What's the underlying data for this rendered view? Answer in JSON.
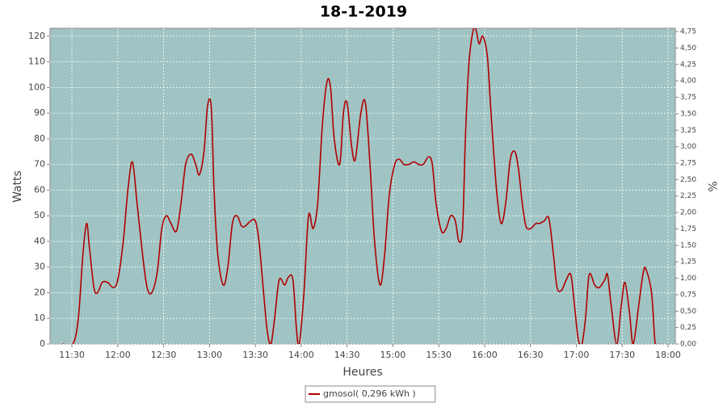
{
  "chart_data": {
    "type": "line",
    "title": "18-1-2019",
    "x_label": "Heures",
    "y_label": "Watts",
    "y2_label": "%",
    "xlim": [
      11.262,
      18.079
    ],
    "xticks": [
      {
        "value": 11.5,
        "label": "11:30"
      },
      {
        "value": 12,
        "label": "12:00"
      },
      {
        "value": 12.5,
        "label": "12:30"
      },
      {
        "value": 13,
        "label": "13:00"
      },
      {
        "value": 13.5,
        "label": "13:30"
      },
      {
        "value": 14,
        "label": "14:00"
      },
      {
        "value": 14.5,
        "label": "14:30"
      },
      {
        "value": 15,
        "label": "15:00"
      },
      {
        "value": 15.5,
        "label": "15:30"
      },
      {
        "value": 16,
        "label": "16:00"
      },
      {
        "value": 16.5,
        "label": "16:30"
      },
      {
        "value": 17,
        "label": "17:00"
      },
      {
        "value": 17.5,
        "label": "17:30"
      },
      {
        "value": 18,
        "label": "18:00"
      }
    ],
    "ylim": [
      0,
      123.1
    ],
    "yticks": [
      0,
      10,
      20,
      30,
      40,
      50,
      60,
      70,
      80,
      90,
      100,
      110,
      120
    ],
    "y2lim": [
      0,
      4.8
    ],
    "y2ticks": [
      {
        "value": 0,
        "label": "0,00"
      },
      {
        "value": 0.25,
        "label": "0,25"
      },
      {
        "value": 0.5,
        "label": "0,50"
      },
      {
        "value": 0.75,
        "label": "0,75"
      },
      {
        "value": 1,
        "label": "1,00"
      },
      {
        "value": 1.25,
        "label": "1,25"
      },
      {
        "value": 1.5,
        "label": "1,50"
      },
      {
        "value": 1.75,
        "label": "1,75"
      },
      {
        "value": 2,
        "label": "2,00"
      },
      {
        "value": 2.25,
        "label": "2,25"
      },
      {
        "value": 2.5,
        "label": "2,50"
      },
      {
        "value": 2.75,
        "label": "2,75"
      },
      {
        "value": 3,
        "label": "3,00"
      },
      {
        "value": 3.25,
        "label": "3,25"
      },
      {
        "value": 3.5,
        "label": "3,50"
      },
      {
        "value": 3.75,
        "label": "3,75"
      },
      {
        "value": 4,
        "label": "4,00"
      },
      {
        "value": 4.25,
        "label": "4,25"
      },
      {
        "value": 4.5,
        "label": "4,50"
      },
      {
        "value": 4.75,
        "label": "4,75"
      }
    ],
    "grid": true,
    "background": "#a0c4c4",
    "legend": "bottom",
    "x": [
      11.4,
      11.51,
      11.57,
      11.62,
      11.66,
      11.69,
      11.74,
      11.78,
      11.83,
      11.89,
      11.95,
      12.0,
      12.06,
      12.11,
      12.16,
      12.21,
      12.27,
      12.32,
      12.37,
      12.43,
      12.48,
      12.53,
      12.58,
      12.64,
      12.69,
      12.74,
      12.8,
      12.85,
      12.89,
      12.94,
      12.98,
      13.02,
      13.05,
      13.09,
      13.15,
      13.2,
      13.25,
      13.3,
      13.35,
      13.39,
      13.45,
      13.5,
      13.54,
      13.59,
      13.63,
      13.67,
      13.71,
      13.76,
      13.82,
      13.86,
      13.91,
      13.95,
      13.98,
      14.03,
      14.08,
      14.13,
      14.18,
      14.23,
      14.28,
      14.32,
      14.36,
      14.42,
      14.46,
      14.5,
      14.55,
      14.59,
      14.65,
      14.7,
      14.75,
      14.8,
      14.86,
      14.91,
      14.96,
      15.02,
      15.07,
      15.12,
      15.17,
      15.23,
      15.28,
      15.33,
      15.39,
      15.43,
      15.47,
      15.53,
      15.58,
      15.63,
      15.68,
      15.72,
      15.76,
      15.79,
      15.83,
      15.88,
      15.91,
      15.94,
      15.98,
      16.03,
      16.07,
      16.13,
      16.18,
      16.23,
      16.28,
      16.33,
      16.37,
      16.41,
      16.45,
      16.5,
      16.56,
      16.6,
      16.65,
      16.7,
      16.75,
      16.79,
      16.84,
      16.89,
      16.94,
      16.98,
      17.02,
      17.06,
      17.1,
      17.14,
      17.2,
      17.25,
      17.31,
      17.34,
      17.38,
      17.44,
      17.49,
      17.53,
      17.58,
      17.62,
      17.68,
      17.73,
      17.76,
      17.82,
      17.86,
      17.9
    ],
    "series": [
      {
        "name": "gmosol( 0,296 kWh )",
        "color": "#b00000",
        "values": [
          0,
          0,
          10,
          35,
          47,
          38,
          22,
          20,
          24,
          24,
          22,
          25,
          40,
          60,
          71,
          55,
          35,
          22,
          20,
          28,
          45,
          50,
          47,
          44,
          55,
          70,
          74,
          70,
          66,
          75,
          93,
          92,
          60,
          35,
          23,
          30,
          47,
          50,
          46,
          46,
          48,
          48,
          40,
          20,
          5,
          0,
          10,
          25,
          23,
          26,
          25,
          5,
          0,
          20,
          50,
          45,
          55,
          85,
          102,
          100,
          80,
          70,
          90,
          94,
          77,
          72,
          90,
          94,
          70,
          40,
          23,
          35,
          58,
          70,
          72,
          70,
          70,
          71,
          70,
          70,
          73,
          70,
          55,
          44,
          45,
          50,
          48,
          40,
          45,
          80,
          110,
          123,
          122,
          117,
          120,
          112,
          90,
          60,
          47,
          55,
          72,
          75,
          68,
          55,
          46,
          45,
          47,
          47,
          48,
          49,
          35,
          22,
          21,
          25,
          27,
          15,
          2,
          0,
          10,
          27,
          23,
          22,
          25,
          27,
          15,
          0,
          15,
          24,
          12,
          0,
          15,
          28,
          29,
          20,
          0,
          0
        ]
      }
    ]
  }
}
